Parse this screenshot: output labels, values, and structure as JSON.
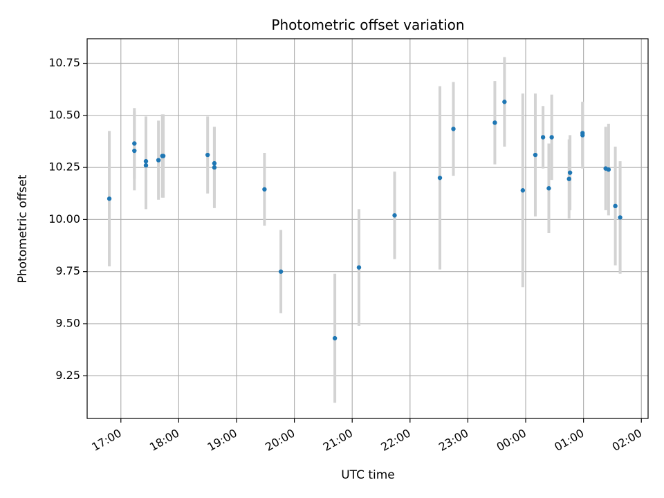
{
  "chart_data": {
    "type": "scatter",
    "title": "Photometric offset variation",
    "xlabel": "UTC time",
    "ylabel": "Photometric offset",
    "x_axis": "time",
    "xlim": [
      "16:25",
      "02:07"
    ],
    "ylim": [
      9.045,
      10.868
    ],
    "x_ticks": [
      "17:00",
      "18:00",
      "19:00",
      "20:00",
      "21:00",
      "22:00",
      "23:00",
      "00:00",
      "01:00",
      "02:00"
    ],
    "y_ticks": [
      9.25,
      9.5,
      9.75,
      10.0,
      10.25,
      10.5,
      10.75
    ],
    "y_tick_labels": [
      "9.25",
      "9.50",
      "9.75",
      "10.00",
      "10.25",
      "10.50",
      "10.75"
    ],
    "grid": true,
    "colors": {
      "points": "#1f77b4",
      "error_bars": "#d3d3d3",
      "grid": "#b0b0b0"
    },
    "points": [
      {
        "x": "16:48",
        "y": 10.1,
        "err": 0.325
      },
      {
        "x": "17:14",
        "y": 10.365,
        "err": 0.17
      },
      {
        "x": "17:14",
        "y": 10.33,
        "err": 0.19
      },
      {
        "x": "17:26",
        "y": 10.28,
        "err": 0.215
      },
      {
        "x": "17:26",
        "y": 10.26,
        "err": 0.21
      },
      {
        "x": "17:39",
        "y": 10.285,
        "err": 0.19
      },
      {
        "x": "17:43",
        "y": 10.305,
        "err": 0.2
      },
      {
        "x": "17:44",
        "y": 10.305,
        "err": 0.2
      },
      {
        "x": "18:30",
        "y": 10.31,
        "err": 0.185
      },
      {
        "x": "18:37",
        "y": 10.27,
        "err": 0.175
      },
      {
        "x": "18:37",
        "y": 10.25,
        "err": 0.195
      },
      {
        "x": "19:29",
        "y": 10.145,
        "err": 0.175
      },
      {
        "x": "19:46",
        "y": 9.75,
        "err": 0.2
      },
      {
        "x": "20:42",
        "y": 9.43,
        "err": 0.31
      },
      {
        "x": "21:07",
        "y": 9.77,
        "err": 0.28
      },
      {
        "x": "21:44",
        "y": 10.02,
        "err": 0.21
      },
      {
        "x": "22:31",
        "y": 10.2,
        "err": 0.44
      },
      {
        "x": "22:45",
        "y": 10.435,
        "err": 0.225
      },
      {
        "x": "23:28",
        "y": 10.465,
        "err": 0.2
      },
      {
        "x": "23:38",
        "y": 10.565,
        "err": 0.215
      },
      {
        "x": "23:57",
        "y": 10.14,
        "err": 0.465
      },
      {
        "x": "00:10",
        "y": 10.31,
        "err": 0.295
      },
      {
        "x": "00:18",
        "y": 10.395,
        "err": 0.15
      },
      {
        "x": "00:24",
        "y": 10.15,
        "err": 0.215
      },
      {
        "x": "00:27",
        "y": 10.395,
        "err": 0.205
      },
      {
        "x": "00:45",
        "y": 10.195,
        "err": 0.19
      },
      {
        "x": "00:46",
        "y": 10.225,
        "err": 0.18
      },
      {
        "x": "00:59",
        "y": 10.415,
        "err": 0.15
      },
      {
        "x": "00:59",
        "y": 10.405,
        "err": 0.16
      },
      {
        "x": "01:23",
        "y": 10.245,
        "err": 0.2
      },
      {
        "x": "01:26",
        "y": 10.24,
        "err": 0.22
      },
      {
        "x": "01:33",
        "y": 10.065,
        "err": 0.285
      },
      {
        "x": "01:38",
        "y": 10.01,
        "err": 0.27
      }
    ]
  }
}
